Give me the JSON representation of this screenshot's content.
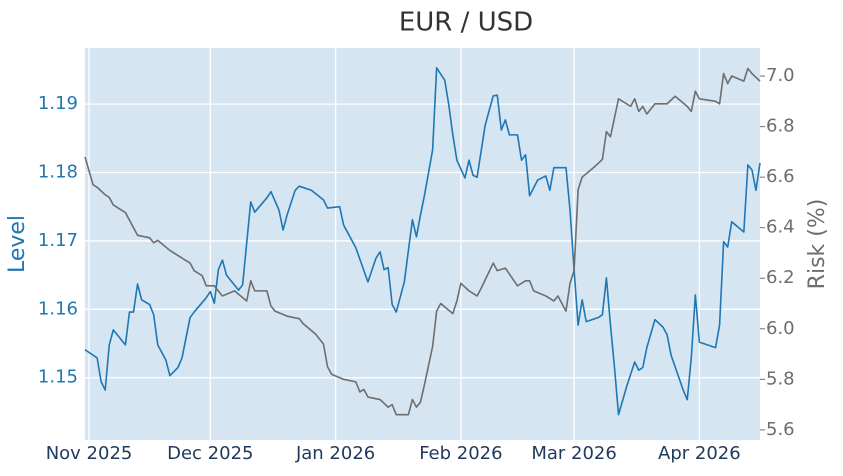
{
  "chart_data": {
    "type": "line",
    "title": "EUR / USD",
    "y_label": "Level",
    "y2_label": "Risk (%)",
    "grid": true,
    "xlim": [
      -1,
      166
    ],
    "xticks": [
      {
        "value": 0,
        "label": "Nov 2025"
      },
      {
        "value": 30,
        "label": "Dec 2025"
      },
      {
        "value": 61,
        "label": "Jan 2026"
      },
      {
        "value": 92,
        "label": "Feb 2026"
      },
      {
        "value": 120,
        "label": "Mar 2026"
      },
      {
        "value": 151,
        "label": "Apr 2026"
      }
    ],
    "ylim": [
      1.1409,
      1.1982
    ],
    "yticks": [
      1.15,
      1.16,
      1.17,
      1.18,
      1.19
    ],
    "y2lim": [
      5.56,
      7.111
    ],
    "y2ticks": [
      5.6,
      5.8,
      {
        "value": 6,
        "label": "6.0"
      },
      6.2,
      6.4,
      6.6,
      6.8,
      {
        "value": 7,
        "label": "7.0"
      }
    ],
    "series": [
      {
        "color": "#1f77b4",
        "x": [
          -1,
          2,
          3,
          4,
          5,
          6,
          9,
          10,
          11,
          12,
          13,
          15,
          16,
          17,
          19,
          20,
          22,
          23,
          25,
          26,
          29,
          30,
          31,
          32,
          33,
          34,
          37,
          38,
          40,
          41,
          44,
          45,
          47,
          48,
          49,
          51,
          52,
          55,
          58,
          59,
          62,
          63,
          65,
          66,
          69,
          71,
          72,
          73,
          74,
          75,
          76,
          78,
          80,
          81,
          82,
          83,
          85,
          86,
          88,
          89,
          90,
          91,
          93,
          94,
          95,
          96,
          98,
          100,
          101,
          102,
          103,
          104,
          106,
          107,
          108,
          109,
          111,
          113,
          114,
          115,
          118,
          119,
          120,
          121,
          122,
          123,
          126,
          127,
          128,
          129,
          130,
          131,
          133,
          135,
          136,
          137,
          138,
          140,
          142,
          143,
          144,
          147,
          148,
          149,
          150,
          151,
          153,
          155,
          156,
          157,
          158,
          159,
          162,
          163,
          164,
          165,
          166
        ],
        "values": [
          1.1541,
          1.1529,
          1.1494,
          1.1482,
          1.1548,
          1.157,
          1.1548,
          1.1596,
          1.1596,
          1.1637,
          1.1614,
          1.1607,
          1.1592,
          1.1548,
          1.1526,
          1.1503,
          1.1515,
          1.1529,
          1.1588,
          1.1596,
          1.1617,
          1.1626,
          1.1609,
          1.1658,
          1.1672,
          1.165,
          1.1628,
          1.1636,
          1.1757,
          1.1742,
          1.1763,
          1.1772,
          1.1745,
          1.1716,
          1.1738,
          1.1774,
          1.178,
          1.1774,
          1.176,
          1.1748,
          1.175,
          1.1723,
          1.1701,
          1.169,
          1.164,
          1.1675,
          1.1684,
          1.1658,
          1.1661,
          1.1607,
          1.1596,
          1.164,
          1.1731,
          1.1706,
          1.1738,
          1.1767,
          1.1833,
          1.1953,
          1.1935,
          1.1899,
          1.1855,
          1.1818,
          1.1792,
          1.1818,
          1.1796,
          1.1793,
          1.1869,
          1.1912,
          1.1913,
          1.1862,
          1.1877,
          1.1855,
          1.1855,
          1.1818,
          1.1826,
          1.1766,
          1.1789,
          1.1795,
          1.1774,
          1.1807,
          1.1807,
          1.1745,
          1.1658,
          1.1577,
          1.1614,
          1.1582,
          1.1588,
          1.1592,
          1.1646,
          1.1577,
          1.1515,
          1.1446,
          1.1487,
          1.1523,
          1.1511,
          1.1515,
          1.1544,
          1.1585,
          1.1574,
          1.1563,
          1.1533,
          1.1482,
          1.1468,
          1.1529,
          1.1621,
          1.1552,
          1.1548,
          1.1544,
          1.1577,
          1.1699,
          1.1691,
          1.1728,
          1.1713,
          1.1811,
          1.1804,
          1.1774,
          1.1814
        ]
      },
      {
        "color": "#6e6e6e",
        "axis": "y2",
        "x": [
          -1,
          1,
          2,
          4,
          5,
          6,
          9,
          10,
          12,
          15,
          16,
          17,
          20,
          23,
          25,
          26,
          28,
          29,
          31,
          33,
          36,
          39,
          40,
          41,
          44,
          45,
          46,
          49,
          52,
          53,
          56,
          58,
          59,
          60,
          63,
          66,
          67,
          68,
          69,
          72,
          74,
          75,
          76,
          78,
          79,
          80,
          81,
          82,
          83,
          85,
          86,
          87,
          90,
          91,
          92,
          94,
          96,
          97,
          100,
          101,
          103,
          106,
          108,
          109,
          110,
          113,
          115,
          116,
          118,
          119,
          120,
          121,
          122,
          125,
          127,
          128,
          129,
          131,
          134,
          135,
          136,
          137,
          138,
          140,
          143,
          145,
          148,
          149,
          150,
          151,
          155,
          156,
          157,
          158,
          159,
          162,
          163,
          164,
          166
        ],
        "values": [
          6.68,
          6.57,
          6.56,
          6.53,
          6.52,
          6.49,
          6.46,
          6.43,
          6.37,
          6.36,
          6.34,
          6.35,
          6.31,
          6.28,
          6.26,
          6.23,
          6.21,
          6.17,
          6.17,
          6.13,
          6.15,
          6.11,
          6.19,
          6.15,
          6.15,
          6.09,
          6.07,
          6.05,
          6.04,
          6.02,
          5.98,
          5.94,
          5.85,
          5.82,
          5.8,
          5.79,
          5.75,
          5.76,
          5.73,
          5.72,
          5.69,
          5.7,
          5.66,
          5.66,
          5.66,
          5.72,
          5.69,
          5.71,
          5.78,
          5.93,
          6.07,
          6.1,
          6.06,
          6.11,
          6.18,
          6.15,
          6.13,
          6.16,
          6.26,
          6.23,
          6.24,
          6.17,
          6.19,
          6.19,
          6.15,
          6.13,
          6.11,
          6.13,
          6.07,
          6.18,
          6.23,
          6.55,
          6.6,
          6.64,
          6.67,
          6.78,
          6.76,
          6.91,
          6.88,
          6.91,
          6.86,
          6.88,
          6.85,
          6.89,
          6.89,
          6.92,
          6.88,
          6.86,
          6.94,
          6.91,
          6.9,
          6.89,
          7.01,
          6.97,
          7.0,
          6.98,
          7.03,
          7.01,
          6.98
        ]
      }
    ]
  }
}
